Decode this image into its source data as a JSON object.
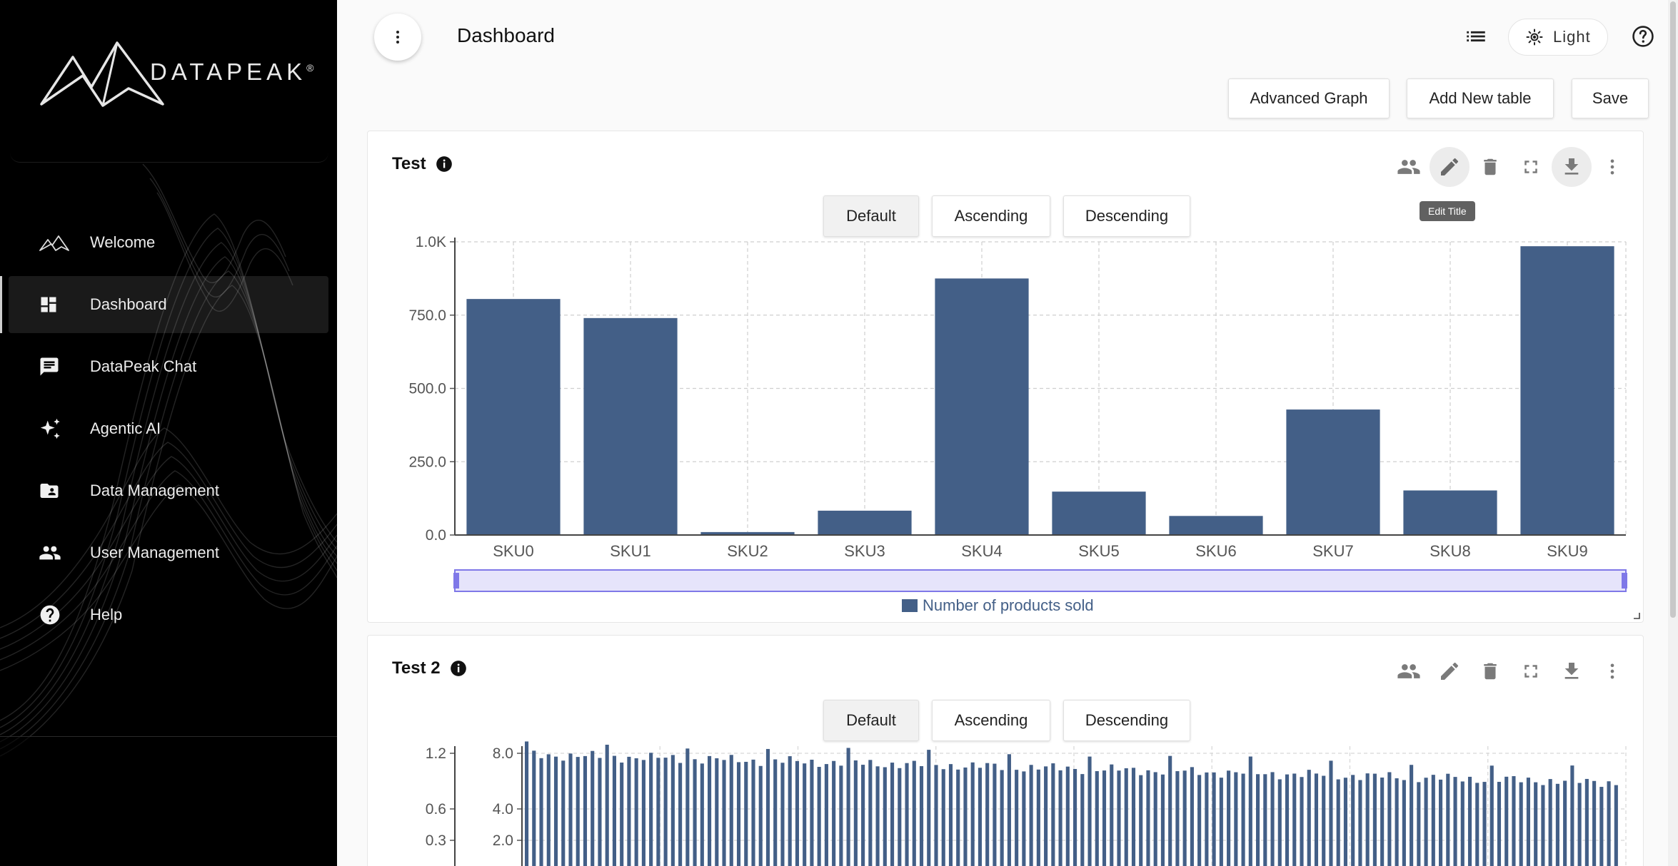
{
  "app": {
    "brand": "DATAPEAK",
    "brand_mark": "®"
  },
  "sidebar": {
    "items": [
      {
        "label": "Welcome",
        "icon": "mountain-icon",
        "active": false
      },
      {
        "label": "Dashboard",
        "icon": "dashboard-icon",
        "active": true
      },
      {
        "label": "DataPeak Chat",
        "icon": "chat-icon",
        "active": false
      },
      {
        "label": "Agentic AI",
        "icon": "sparkle-icon",
        "active": false
      },
      {
        "label": "Data Management",
        "icon": "folder-user-icon",
        "active": false
      },
      {
        "label": "User Management",
        "icon": "people-icon",
        "active": false
      },
      {
        "label": "Help",
        "icon": "help-circle-icon",
        "active": false
      }
    ]
  },
  "header": {
    "title": "Dashboard",
    "theme_label": "Light"
  },
  "toolbar": {
    "advanced_graph": "Advanced Graph",
    "add_table": "Add New table",
    "save": "Save"
  },
  "colors": {
    "bar": "#435f87",
    "slider": "#e6e4fb",
    "slider_border": "#7f78e8"
  },
  "cards": [
    {
      "title": "Test",
      "tooltip": "Edit Title",
      "sort_buttons": [
        "Default",
        "Ascending",
        "Descending"
      ],
      "selected_sort": "Default"
    },
    {
      "title": "Test 2",
      "sort_buttons": [
        "Default",
        "Ascending",
        "Descending"
      ],
      "selected_sort": "Default"
    }
  ],
  "chart_data": [
    {
      "type": "bar",
      "title": "",
      "categories": [
        "SKU0",
        "SKU1",
        "SKU2",
        "SKU3",
        "SKU4",
        "SKU5",
        "SKU6",
        "SKU7",
        "SKU8",
        "SKU9"
      ],
      "series": [
        {
          "name": "Number of products sold",
          "values": [
            805,
            740,
            10,
            83,
            875,
            148,
            65,
            428,
            152,
            985
          ]
        }
      ],
      "ylim": [
        0,
        1000
      ],
      "yticks": [
        "0.0",
        "250.0",
        "500.0",
        "750.0",
        "1.0K"
      ],
      "grid": true,
      "legend": "bottom-center"
    },
    {
      "type": "bar",
      "title": "",
      "left_axis_ticks": [
        "1.2",
        "0.6",
        "0.3"
      ],
      "right_axis_ticks": [
        "8.0",
        "4.0",
        "2.0"
      ],
      "y2lim": [
        0,
        8.0
      ],
      "bar_count": 150,
      "trend": {
        "start": 7.9,
        "end": 5.9
      },
      "grid": true
    }
  ]
}
